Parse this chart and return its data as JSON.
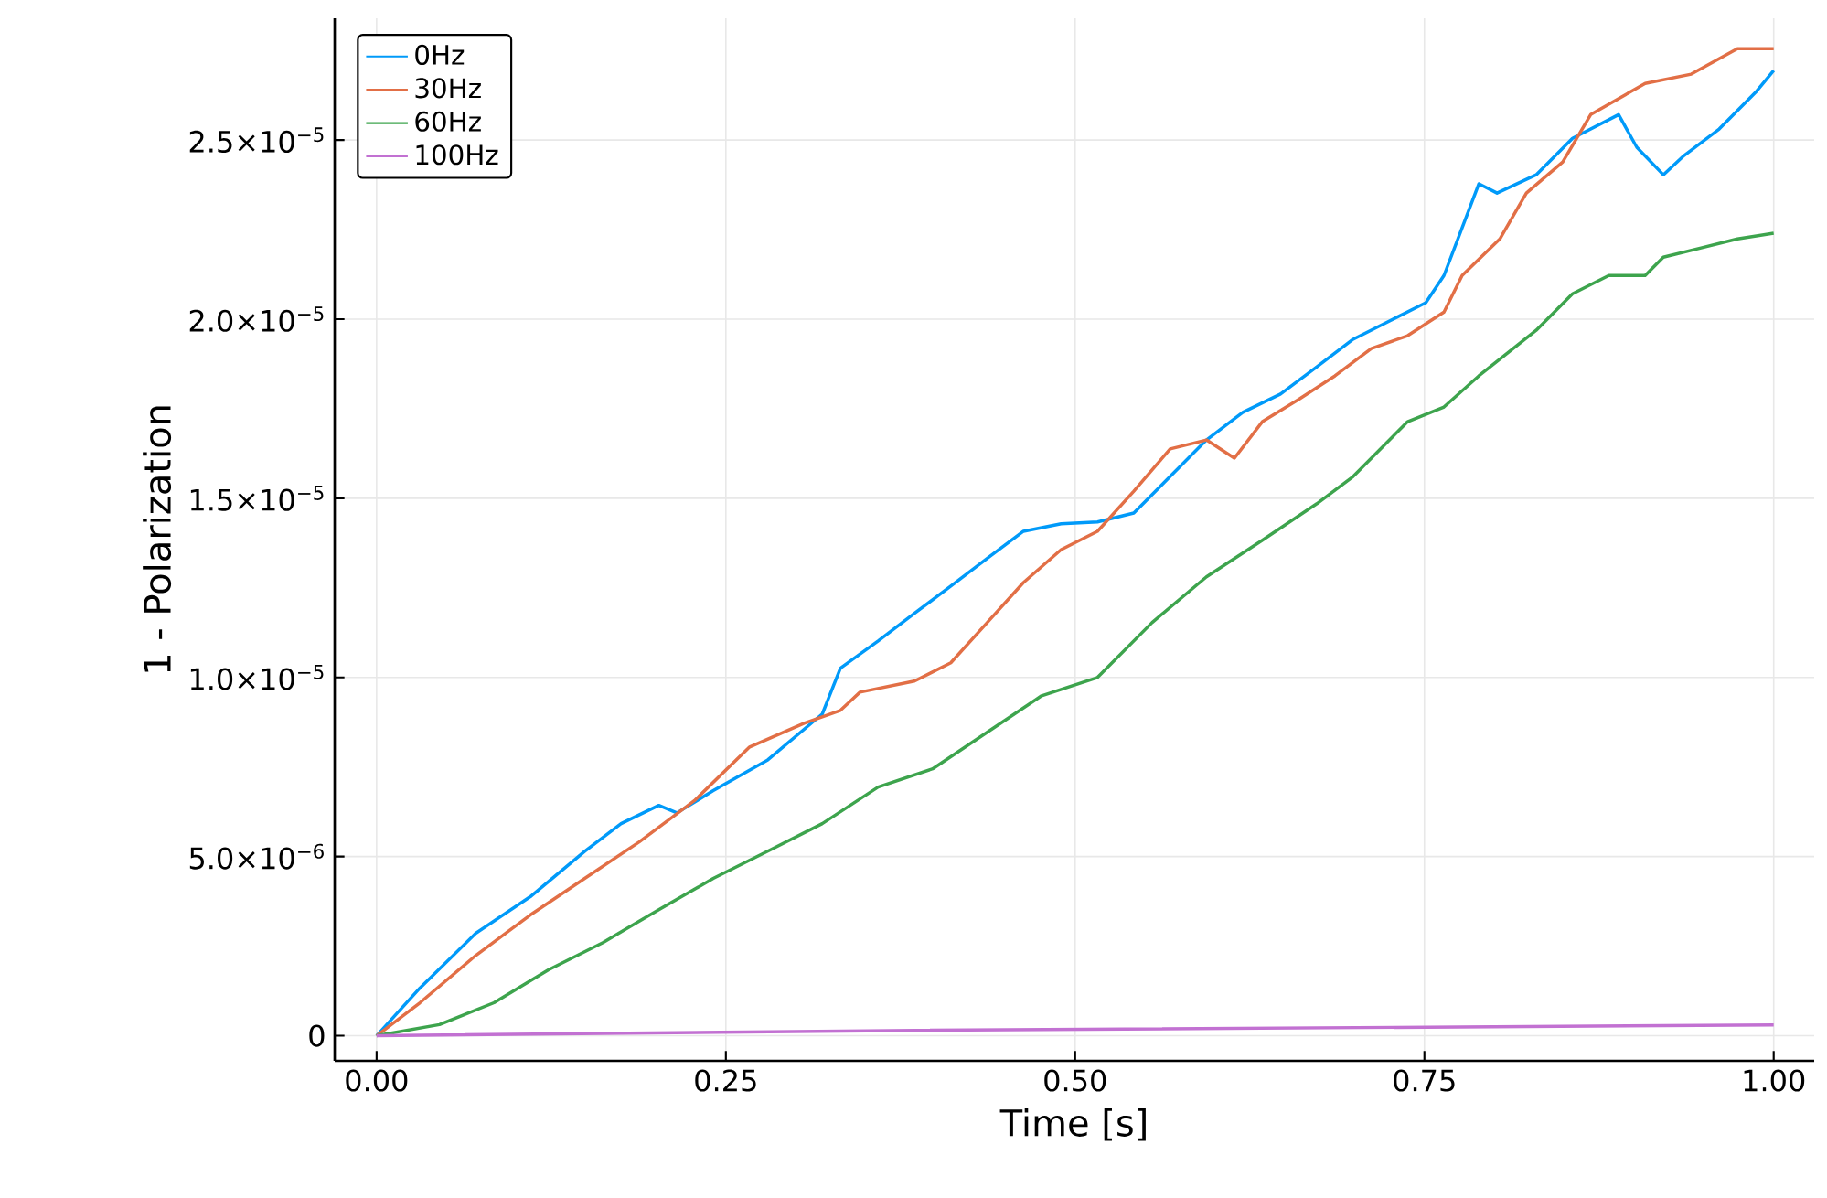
{
  "chart_data": {
    "type": "line",
    "xlabel": "Time [s]",
    "ylabel": "1 - Polarization",
    "xlim": [
      -0.03,
      1.029
    ],
    "ylim": [
      -7e-07,
      2.84e-05
    ],
    "xticks": [
      {
        "value": 0,
        "label": "0.00"
      },
      0.25,
      {
        "value": 0.5,
        "label": "0.50"
      },
      0.75,
      {
        "value": 1,
        "label": "1.00"
      }
    ],
    "yticks": [
      0,
      {
        "value": 5e-06,
        "label": "5.0×10$^{−6}$"
      },
      {
        "value": 1e-05,
        "label": "1.0×10$^{−5}$"
      },
      {
        "value": 1.5e-05,
        "label": "1.5×10$^{−5}$"
      },
      {
        "value": 2e-05,
        "label": "2.0×10$^{−5}$"
      },
      {
        "value": 2.5e-05,
        "label": "2.5×10$^{−5}$"
      }
    ],
    "grid": true,
    "legend": "top left",
    "marker": "none",
    "line_style": "solid",
    "series": [
      {
        "name": "0Hz",
        "color": "#009af9",
        "x": [
          0,
          0.031,
          0.071,
          0.11,
          0.149,
          0.175,
          0.202,
          0.215,
          0.241,
          0.28,
          0.319,
          0.332,
          0.359,
          0.385,
          0.411,
          0.437,
          0.463,
          0.49,
          0.516,
          0.542,
          0.568,
          0.594,
          0.62,
          0.647,
          0.673,
          0.699,
          0.725,
          0.751,
          0.764,
          0.789,
          0.802,
          0.83,
          0.856,
          0.889,
          0.902,
          0.921,
          0.935,
          0.961,
          0.987,
          1.0
        ],
        "values": [
          0,
          1.33e-06,
          2.86e-06,
          3.88e-06,
          5.15e-06,
          5.92e-06,
          6.43e-06,
          6.22e-06,
          6.84e-06,
          7.7e-06,
          8.98e-06,
          1.026e-05,
          1.102e-05,
          1.179e-05,
          1.255e-05,
          1.332e-05,
          1.408e-05,
          1.429e-05,
          1.434e-05,
          1.459e-05,
          1.561e-05,
          1.663e-05,
          1.74e-05,
          1.791e-05,
          1.867e-05,
          1.944e-05,
          1.995e-05,
          2.046e-05,
          2.122e-05,
          2.378e-05,
          2.352e-05,
          2.403e-05,
          2.505e-05,
          2.571e-05,
          2.48e-05,
          2.403e-05,
          2.454e-05,
          2.531e-05,
          2.633e-05,
          2.694e-05
        ]
      },
      {
        "name": "30Hz",
        "color": "#e26f46",
        "x": [
          0,
          0.031,
          0.071,
          0.11,
          0.149,
          0.188,
          0.228,
          0.267,
          0.306,
          0.332,
          0.346,
          0.385,
          0.411,
          0.437,
          0.463,
          0.49,
          0.516,
          0.542,
          0.568,
          0.594,
          0.614,
          0.634,
          0.66,
          0.686,
          0.712,
          0.738,
          0.764,
          0.777,
          0.804,
          0.823,
          0.849,
          0.869,
          0.908,
          0.941,
          0.974,
          1.0
        ],
        "values": [
          0,
          9.2e-07,
          2.24e-06,
          3.37e-06,
          4.39e-06,
          5.41e-06,
          6.58e-06,
          8.06e-06,
          8.72e-06,
          9.08e-06,
          9.59e-06,
          9.9e-06,
          1.041e-05,
          1.153e-05,
          1.265e-05,
          1.357e-05,
          1.408e-05,
          1.52e-05,
          1.638e-05,
          1.663e-05,
          1.612e-05,
          1.714e-05,
          1.776e-05,
          1.842e-05,
          1.918e-05,
          1.954e-05,
          2.02e-05,
          2.122e-05,
          2.224e-05,
          2.352e-05,
          2.439e-05,
          2.571e-05,
          2.658e-05,
          2.684e-05,
          2.755e-05,
          2.755e-05
        ]
      },
      {
        "name": "60Hz",
        "color": "#3da44d",
        "x": [
          0,
          0.045,
          0.084,
          0.123,
          0.162,
          0.202,
          0.241,
          0.28,
          0.319,
          0.359,
          0.398,
          0.437,
          0.476,
          0.516,
          0.555,
          0.594,
          0.634,
          0.673,
          0.699,
          0.738,
          0.764,
          0.789,
          0.83,
          0.856,
          0.882,
          0.908,
          0.921,
          0.948,
          0.974,
          1.0
        ],
        "values": [
          0,
          3.1e-07,
          9.2e-07,
          1.84e-06,
          2.6e-06,
          3.52e-06,
          4.39e-06,
          5.15e-06,
          5.92e-06,
          6.94e-06,
          7.45e-06,
          8.47e-06,
          9.49e-06,
          1e-05,
          1.153e-05,
          1.281e-05,
          1.383e-05,
          1.485e-05,
          1.561e-05,
          1.714e-05,
          1.755e-05,
          1.842e-05,
          1.969e-05,
          2.071e-05,
          2.122e-05,
          2.122e-05,
          2.173e-05,
          2.199e-05,
          2.224e-05,
          2.24e-05
        ]
      },
      {
        "name": "100Hz",
        "color": "#c271d2",
        "x": [
          0,
          0.385,
          1.0
        ],
        "values": [
          0,
          1.5e-07,
          3e-07
        ]
      }
    ]
  }
}
